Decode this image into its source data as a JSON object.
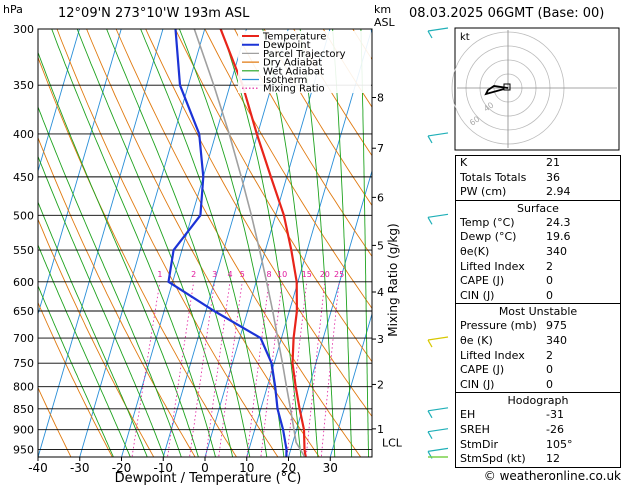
{
  "header": {
    "pressure_unit": "hPa",
    "location": "12°09'N  273°10'W  193m  ASL",
    "km_unit": "km",
    "asl_unit": "ASL",
    "datetime": "08.03.2025  06GMT  (Base: 00)"
  },
  "hodograph_label": "kt",
  "credit": "© weatheronline.co.uk",
  "chart_data": {
    "type": "line",
    "title": "",
    "xlabel": "Dewpoint / Temperature (°C)",
    "ylabel": "hPa",
    "secondary_ylabel": "Mixing Ratio (g/kg)",
    "xlim": [
      -40,
      40
    ],
    "ylim": [
      970,
      300
    ],
    "y_scale": "log",
    "x_ticks": [
      -40,
      -30,
      -20,
      -10,
      0,
      10,
      20,
      30
    ],
    "pressure_levels": [
      300,
      350,
      400,
      450,
      500,
      550,
      600,
      650,
      700,
      750,
      800,
      850,
      900,
      950
    ],
    "km_ticks": [
      {
        "label": "8",
        "p": 362
      },
      {
        "label": "7",
        "p": 416
      },
      {
        "label": "6",
        "p": 476
      },
      {
        "label": "5",
        "p": 543
      },
      {
        "label": "4",
        "p": 617
      },
      {
        "label": "3",
        "p": 702
      },
      {
        "label": "2",
        "p": 795
      },
      {
        "label": "1",
        "p": 898
      }
    ],
    "lcl_label": "LCL",
    "lcl_p": 932,
    "mixing_ratio_labels": [
      "1",
      "2",
      "3",
      "4",
      "5",
      "8",
      "10",
      "15",
      "20",
      "25"
    ],
    "legend": [
      "Temperature",
      "Dewpoint",
      "Parcel Trajectory",
      "Dry Adiabat",
      "Wet Adiabat",
      "Isotherm",
      "Mixing Ratio"
    ],
    "legend_placement": "top-left",
    "colors": {
      "temperature": "#e8241a",
      "dewpoint": "#1c33d6",
      "parcel": "#a0a0a0",
      "dry_adiabat": "#e07a10",
      "wet_adiabat": "#1fa31f",
      "isotherm": "#2a8fd8",
      "mixing_ratio": "#e0189c"
    },
    "series": [
      {
        "name": "Temperature",
        "points": [
          [
            975,
            24.3
          ],
          [
            950,
            23.3
          ],
          [
            900,
            21.8
          ],
          [
            850,
            19.3
          ],
          [
            800,
            16.8
          ],
          [
            750,
            14.4
          ],
          [
            700,
            12.9
          ],
          [
            650,
            11.8
          ],
          [
            600,
            9.7
          ],
          [
            550,
            6.2
          ],
          [
            500,
            2.0
          ],
          [
            450,
            -3.8
          ],
          [
            400,
            -10.2
          ],
          [
            350,
            -17.0
          ],
          [
            300,
            -26.2
          ]
        ]
      },
      {
        "name": "Dewpoint",
        "points": [
          [
            975,
            19.6
          ],
          [
            950,
            19.0
          ],
          [
            900,
            16.8
          ],
          [
            850,
            14.0
          ],
          [
            800,
            11.9
          ],
          [
            750,
            9.4
          ],
          [
            700,
            5.0
          ],
          [
            650,
            -8.0
          ],
          [
            600,
            -21.0
          ],
          [
            550,
            -22.0
          ],
          [
            500,
            -18.0
          ],
          [
            450,
            -20.0
          ],
          [
            400,
            -24.0
          ],
          [
            350,
            -32.0
          ],
          [
            300,
            -37.0
          ]
        ]
      },
      {
        "name": "Parcel Trajectory",
        "points": [
          [
            975,
            24.3
          ],
          [
            932,
            20.8
          ],
          [
            900,
            19.4
          ],
          [
            850,
            17.1
          ],
          [
            800,
            14.6
          ],
          [
            750,
            12.0
          ],
          [
            700,
            9.1
          ],
          [
            650,
            6.0
          ],
          [
            600,
            2.5
          ],
          [
            550,
            -1.4
          ],
          [
            500,
            -5.8
          ],
          [
            450,
            -10.9
          ],
          [
            400,
            -16.8
          ],
          [
            350,
            -23.9
          ],
          [
            300,
            -32.5
          ]
        ]
      }
    ],
    "wind_barbs_hpa": [
      300,
      400,
      500,
      700,
      850,
      900,
      950
    ]
  },
  "hodograph": {
    "rings": [
      "40",
      "60"
    ]
  },
  "indices": [
    {
      "label": "K",
      "value": "21"
    },
    {
      "label": "Totals Totals",
      "value": "36"
    },
    {
      "label": "PW (cm)",
      "value": "2.94"
    }
  ],
  "surface": {
    "title": "Surface",
    "rows": [
      {
        "label": "Temp (°C)",
        "value": "24.3"
      },
      {
        "label": "Dewp (°C)",
        "value": "19.6"
      },
      {
        "label": "θe(K)",
        "value": "340"
      },
      {
        "label": "Lifted Index",
        "value": "2"
      },
      {
        "label": "CAPE (J)",
        "value": "0"
      },
      {
        "label": "CIN (J)",
        "value": "0"
      }
    ]
  },
  "unstable": {
    "title": "Most Unstable",
    "rows": [
      {
        "label": "Pressure (mb)",
        "value": "975"
      },
      {
        "label": "θe (K)",
        "value": "340"
      },
      {
        "label": "Lifted Index",
        "value": "2"
      },
      {
        "label": "CAPE (J)",
        "value": "0"
      },
      {
        "label": "CIN (J)",
        "value": "0"
      }
    ]
  },
  "hodo_table": {
    "title": "Hodograph",
    "rows": [
      {
        "label": "EH",
        "value": "-31"
      },
      {
        "label": "SREH",
        "value": "-26"
      },
      {
        "label": "StmDir",
        "value": "105°"
      },
      {
        "label": "StmSpd (kt)",
        "value": "12"
      }
    ]
  }
}
